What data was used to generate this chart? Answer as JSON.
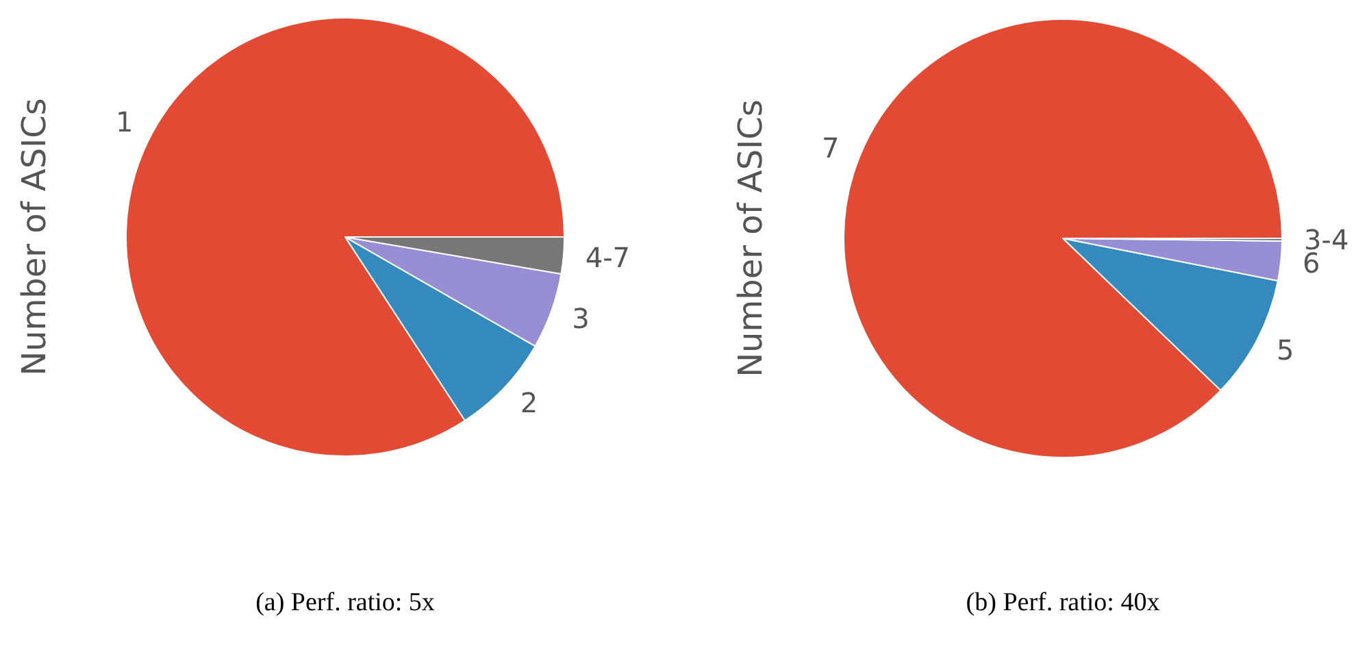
{
  "chart_data": [
    {
      "type": "pie",
      "ylabel": "Number of ASICs",
      "categories": [
        "1",
        "2",
        "3",
        "4-7"
      ],
      "values": [
        84.2,
        7.5,
        5.6,
        2.7
      ],
      "colors": [
        "#e24a33",
        "#348abd",
        "#988ed5",
        "#777777"
      ],
      "annotations": [
        "(a) Perf. ratio: 5x"
      ]
    },
    {
      "type": "pie",
      "ylabel": "Number of ASICs",
      "categories": [
        "7",
        "5",
        "6",
        "3-4"
      ],
      "values": [
        87.8,
        9.1,
        2.9,
        0.2
      ],
      "colors": [
        "#e24a33",
        "#348abd",
        "#988ed5",
        "#777777"
      ],
      "annotations": [
        "(b) Perf. ratio: 40x"
      ]
    }
  ]
}
